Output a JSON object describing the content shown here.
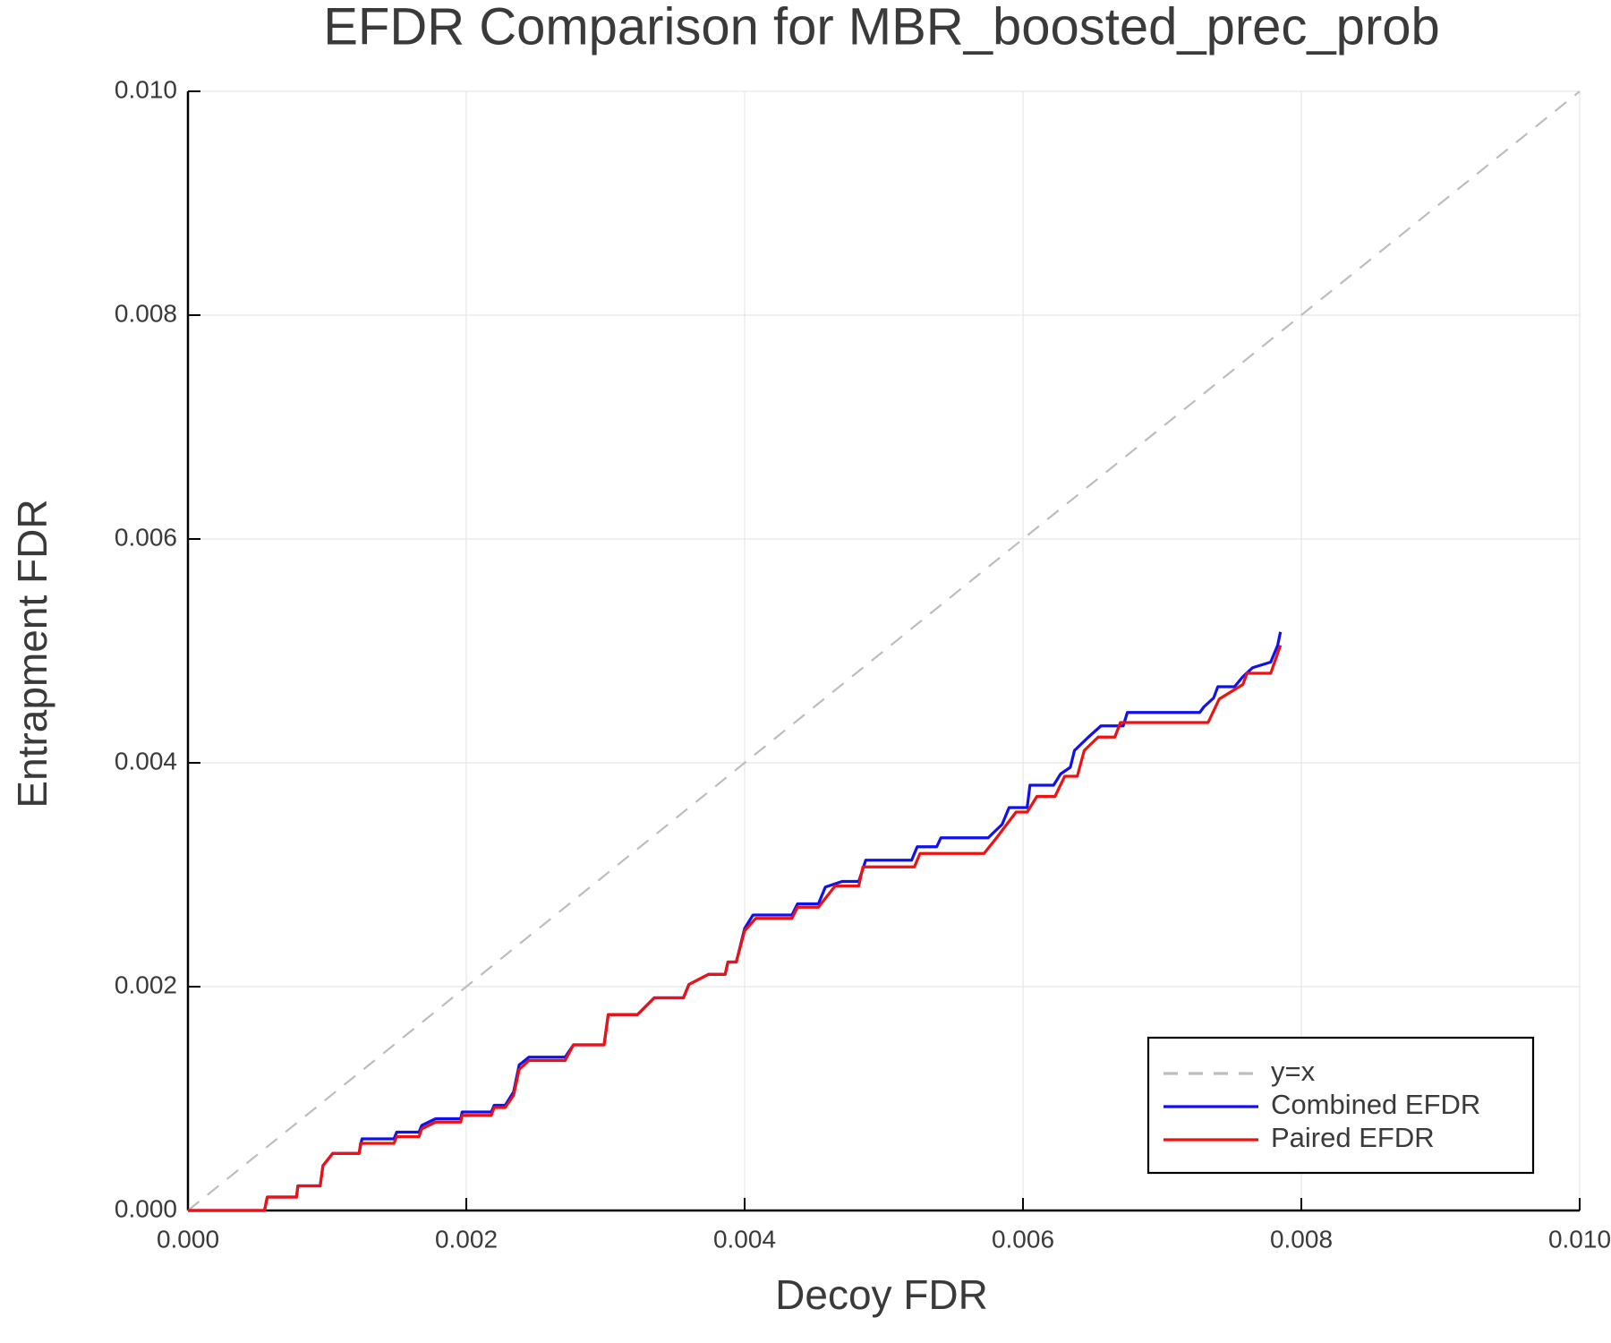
{
  "chart_data": {
    "type": "line",
    "title": "EFDR Comparison for MBR_boosted_prec_prob",
    "x_label": "Decoy FDR",
    "y_label": "Entrapment FDR",
    "xlim": [
      0,
      0.01
    ],
    "ylim": [
      0,
      0.01
    ],
    "xticks": [
      {
        "value": 0,
        "label": "0.000"
      },
      {
        "value": 0.002,
        "label": "0.002"
      },
      {
        "value": 0.004,
        "label": "0.004"
      },
      {
        "value": 0.006,
        "label": "0.006"
      },
      {
        "value": 0.008,
        "label": "0.008"
      },
      {
        "value": 0.01,
        "label": "0.010"
      }
    ],
    "yticks": [
      {
        "value": 0,
        "label": "0.000"
      },
      {
        "value": 0.002,
        "label": "0.002"
      },
      {
        "value": 0.004,
        "label": "0.004"
      },
      {
        "value": 0.006,
        "label": "0.006"
      },
      {
        "value": 0.008,
        "label": "0.008"
      },
      {
        "value": 0.01,
        "label": "0.010"
      }
    ],
    "grid": true,
    "legend": "bottom right",
    "series": [
      {
        "name": "y=x",
        "color": "#bdbdbd",
        "line_style": "dashed",
        "x": [
          0,
          0.01
        ],
        "values": [
          0,
          0.01
        ]
      },
      {
        "name": "Combined EFDR",
        "color": "#1010f0",
        "line_style": "solid",
        "x": [
          0,
          0.00055,
          0.00057,
          0.00078,
          0.00079,
          0.00095,
          0.00097,
          0.00104,
          0.00123,
          0.00125,
          0.00148,
          0.0015,
          0.00166,
          0.00168,
          0.00178,
          0.00196,
          0.00197,
          0.00218,
          0.0022,
          0.00228,
          0.00234,
          0.00238,
          0.00245,
          0.00271,
          0.00277,
          0.00299,
          0.00302,
          0.00323,
          0.00335,
          0.00356,
          0.0036,
          0.00374,
          0.00386,
          0.00388,
          0.00394,
          0.004,
          0.00406,
          0.00434,
          0.00438,
          0.00453,
          0.00458,
          0.0047,
          0.00482,
          0.00487,
          0.0052,
          0.00524,
          0.00538,
          0.00541,
          0.00575,
          0.00585,
          0.0059,
          0.00603,
          0.00605,
          0.00622,
          0.00627,
          0.00634,
          0.00637,
          0.00647,
          0.00656,
          0.00672,
          0.00675,
          0.00727,
          0.0073,
          0.00737,
          0.0074,
          0.00752,
          0.00758,
          0.00765,
          0.00778,
          0.00783,
          0.00785
        ],
        "values": [
          0,
          0,
          0.00012,
          0.00012,
          0.00022,
          0.00022,
          0.0004,
          0.00051,
          0.00051,
          0.00064,
          0.00064,
          0.0007,
          0.0007,
          0.00076,
          0.00082,
          0.00082,
          0.00088,
          0.00088,
          0.00094,
          0.00094,
          0.00106,
          0.0013,
          0.00137,
          0.00137,
          0.00148,
          0.00148,
          0.00175,
          0.00175,
          0.0019,
          0.0019,
          0.00202,
          0.00211,
          0.00211,
          0.00222,
          0.00222,
          0.00252,
          0.00264,
          0.00264,
          0.00274,
          0.00274,
          0.00289,
          0.00294,
          0.00294,
          0.00313,
          0.00313,
          0.00325,
          0.00325,
          0.00333,
          0.00333,
          0.00345,
          0.0036,
          0.0036,
          0.0038,
          0.0038,
          0.0039,
          0.00396,
          0.00411,
          0.00423,
          0.00433,
          0.00433,
          0.00445,
          0.00445,
          0.0045,
          0.00458,
          0.00468,
          0.00468,
          0.00477,
          0.00485,
          0.0049,
          0.00505,
          0.00517
        ]
      },
      {
        "name": "Paired EFDR",
        "color": "#f01010",
        "line_style": "solid",
        "x": [
          0,
          0.00055,
          0.00057,
          0.00078,
          0.00079,
          0.00095,
          0.00097,
          0.00104,
          0.00123,
          0.00124,
          0.00148,
          0.0015,
          0.00166,
          0.00168,
          0.00178,
          0.00196,
          0.00197,
          0.00218,
          0.0022,
          0.00228,
          0.00234,
          0.00238,
          0.00245,
          0.00271,
          0.00277,
          0.00299,
          0.00302,
          0.00323,
          0.00335,
          0.00356,
          0.0036,
          0.00374,
          0.00386,
          0.00388,
          0.00394,
          0.004,
          0.00408,
          0.00434,
          0.00438,
          0.00453,
          0.00465,
          0.00482,
          0.00485,
          0.00522,
          0.00526,
          0.00572,
          0.00581,
          0.00595,
          0.00603,
          0.0061,
          0.00623,
          0.0063,
          0.00639,
          0.00644,
          0.00654,
          0.00666,
          0.0067,
          0.00733,
          0.00741,
          0.00758,
          0.00761,
          0.00778,
          0.00785
        ],
        "values": [
          0,
          0,
          0.00012,
          0.00012,
          0.00022,
          0.00022,
          0.0004,
          0.00051,
          0.00051,
          0.0006,
          0.0006,
          0.00066,
          0.00066,
          0.00073,
          0.00079,
          0.00079,
          0.00085,
          0.00085,
          0.00092,
          0.00092,
          0.00103,
          0.00126,
          0.00134,
          0.00134,
          0.00148,
          0.00148,
          0.00175,
          0.00175,
          0.0019,
          0.0019,
          0.00202,
          0.00211,
          0.00211,
          0.00222,
          0.00222,
          0.0025,
          0.00261,
          0.00261,
          0.00271,
          0.00271,
          0.0029,
          0.0029,
          0.00307,
          0.00307,
          0.00319,
          0.00319,
          0.00333,
          0.00356,
          0.00356,
          0.0037,
          0.0037,
          0.00388,
          0.00388,
          0.00411,
          0.00423,
          0.00423,
          0.00436,
          0.00436,
          0.00457,
          0.0047,
          0.0048,
          0.0048,
          0.00505
        ]
      }
    ]
  }
}
